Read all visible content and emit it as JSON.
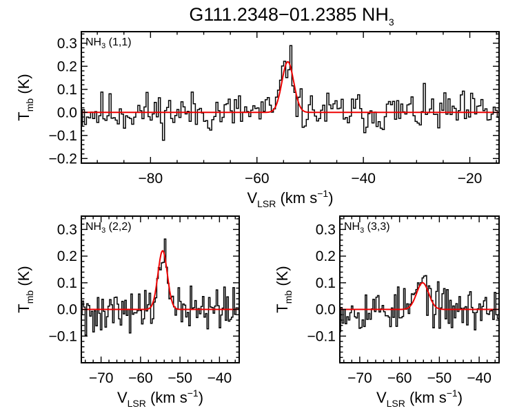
{
  "chart_data": {
    "title": "G111.2348−01.2385 NH",
    "title_subscript": "3",
    "panels": [
      {
        "id": "top",
        "type": "line",
        "label_main": "NH",
        "label_sub": "3",
        "label_tail": " (1,1)",
        "xlabel": {
          "main": "V",
          "sub": "LSR",
          "unit_open": " (km s",
          "sup": "−1",
          "unit_close": ")"
        },
        "ylabel": {
          "main": "T",
          "sub": "mb",
          "unit": " (K)"
        },
        "xlim": [
          -93,
          -14.5
        ],
        "ylim": [
          -0.22,
          0.35
        ],
        "xticks": [
          -80,
          -60,
          -40,
          -20
        ],
        "xtick_labels": [
          "−80",
          "−60",
          "−40",
          "−20"
        ],
        "yticks": [
          -0.2,
          -0.1,
          0.0,
          0.1,
          0.2,
          0.3
        ],
        "ytick_labels": [
          "−0.2",
          "−0.1",
          "0.0",
          "0.1",
          "0.2",
          "0.3"
        ],
        "x_start": -93,
        "x_step": 0.386,
        "noise_amp": 0.055,
        "seed": 11,
        "fit": {
          "amplitude": 0.22,
          "center": -54.2,
          "fwhm": 2.6
        },
        "spectrum_color": "#000000",
        "fit_color": "#ee0000"
      },
      {
        "id": "bl",
        "type": "line",
        "label_main": "NH",
        "label_sub": "3",
        "label_tail": " (2,2)",
        "xlabel": {
          "main": "V",
          "sub": "LSR",
          "unit_open": " (km s",
          "sup": "−1",
          "unit_close": ")"
        },
        "ylabel": {
          "main": "T",
          "sub": "mb",
          "unit": " (K)"
        },
        "xlim": [
          -75,
          -35
        ],
        "ylim": [
          -0.2,
          0.35
        ],
        "xticks": [
          -70,
          -60,
          -50,
          -40
        ],
        "xtick_labels": [
          "−70",
          "−60",
          "−50",
          "−40"
        ],
        "yticks": [
          -0.1,
          0.0,
          0.1,
          0.2,
          0.3
        ],
        "ytick_labels": [
          "−0.1",
          "0.0",
          "0.1",
          "0.2",
          "0.3"
        ],
        "x_start": -75,
        "x_step": 0.386,
        "noise_amp": 0.055,
        "seed": 27,
        "fit": {
          "amplitude": 0.22,
          "center": -54.4,
          "fwhm": 2.8
        },
        "spectrum_color": "#000000",
        "fit_color": "#ee0000"
      },
      {
        "id": "br",
        "type": "line",
        "label_main": "NH",
        "label_sub": "3",
        "label_tail": " (3,3)",
        "xlabel": {
          "main": "V",
          "sub": "LSR",
          "unit_open": " (km s",
          "sup": "−1",
          "unit_close": ")"
        },
        "ylabel": {
          "main": "T",
          "sub": "mb",
          "unit": " (K)"
        },
        "xlim": [
          -75,
          -35
        ],
        "ylim": [
          -0.2,
          0.35
        ],
        "xticks": [
          -70,
          -60,
          -50,
          -40
        ],
        "xtick_labels": [
          "−70",
          "−60",
          "−50",
          "−40"
        ],
        "yticks": [
          -0.1,
          0.0,
          0.1,
          0.2,
          0.3
        ],
        "ytick_labels": [
          "−0.1",
          "0.0",
          "0.1",
          "0.2",
          "0.3"
        ],
        "x_start": -75,
        "x_step": 0.386,
        "noise_amp": 0.05,
        "seed": 53,
        "fit": {
          "amplitude": 0.1,
          "center": -54.2,
          "fwhm": 3.6
        },
        "spectrum_color": "#000000",
        "fit_color": "#ee0000"
      }
    ]
  }
}
